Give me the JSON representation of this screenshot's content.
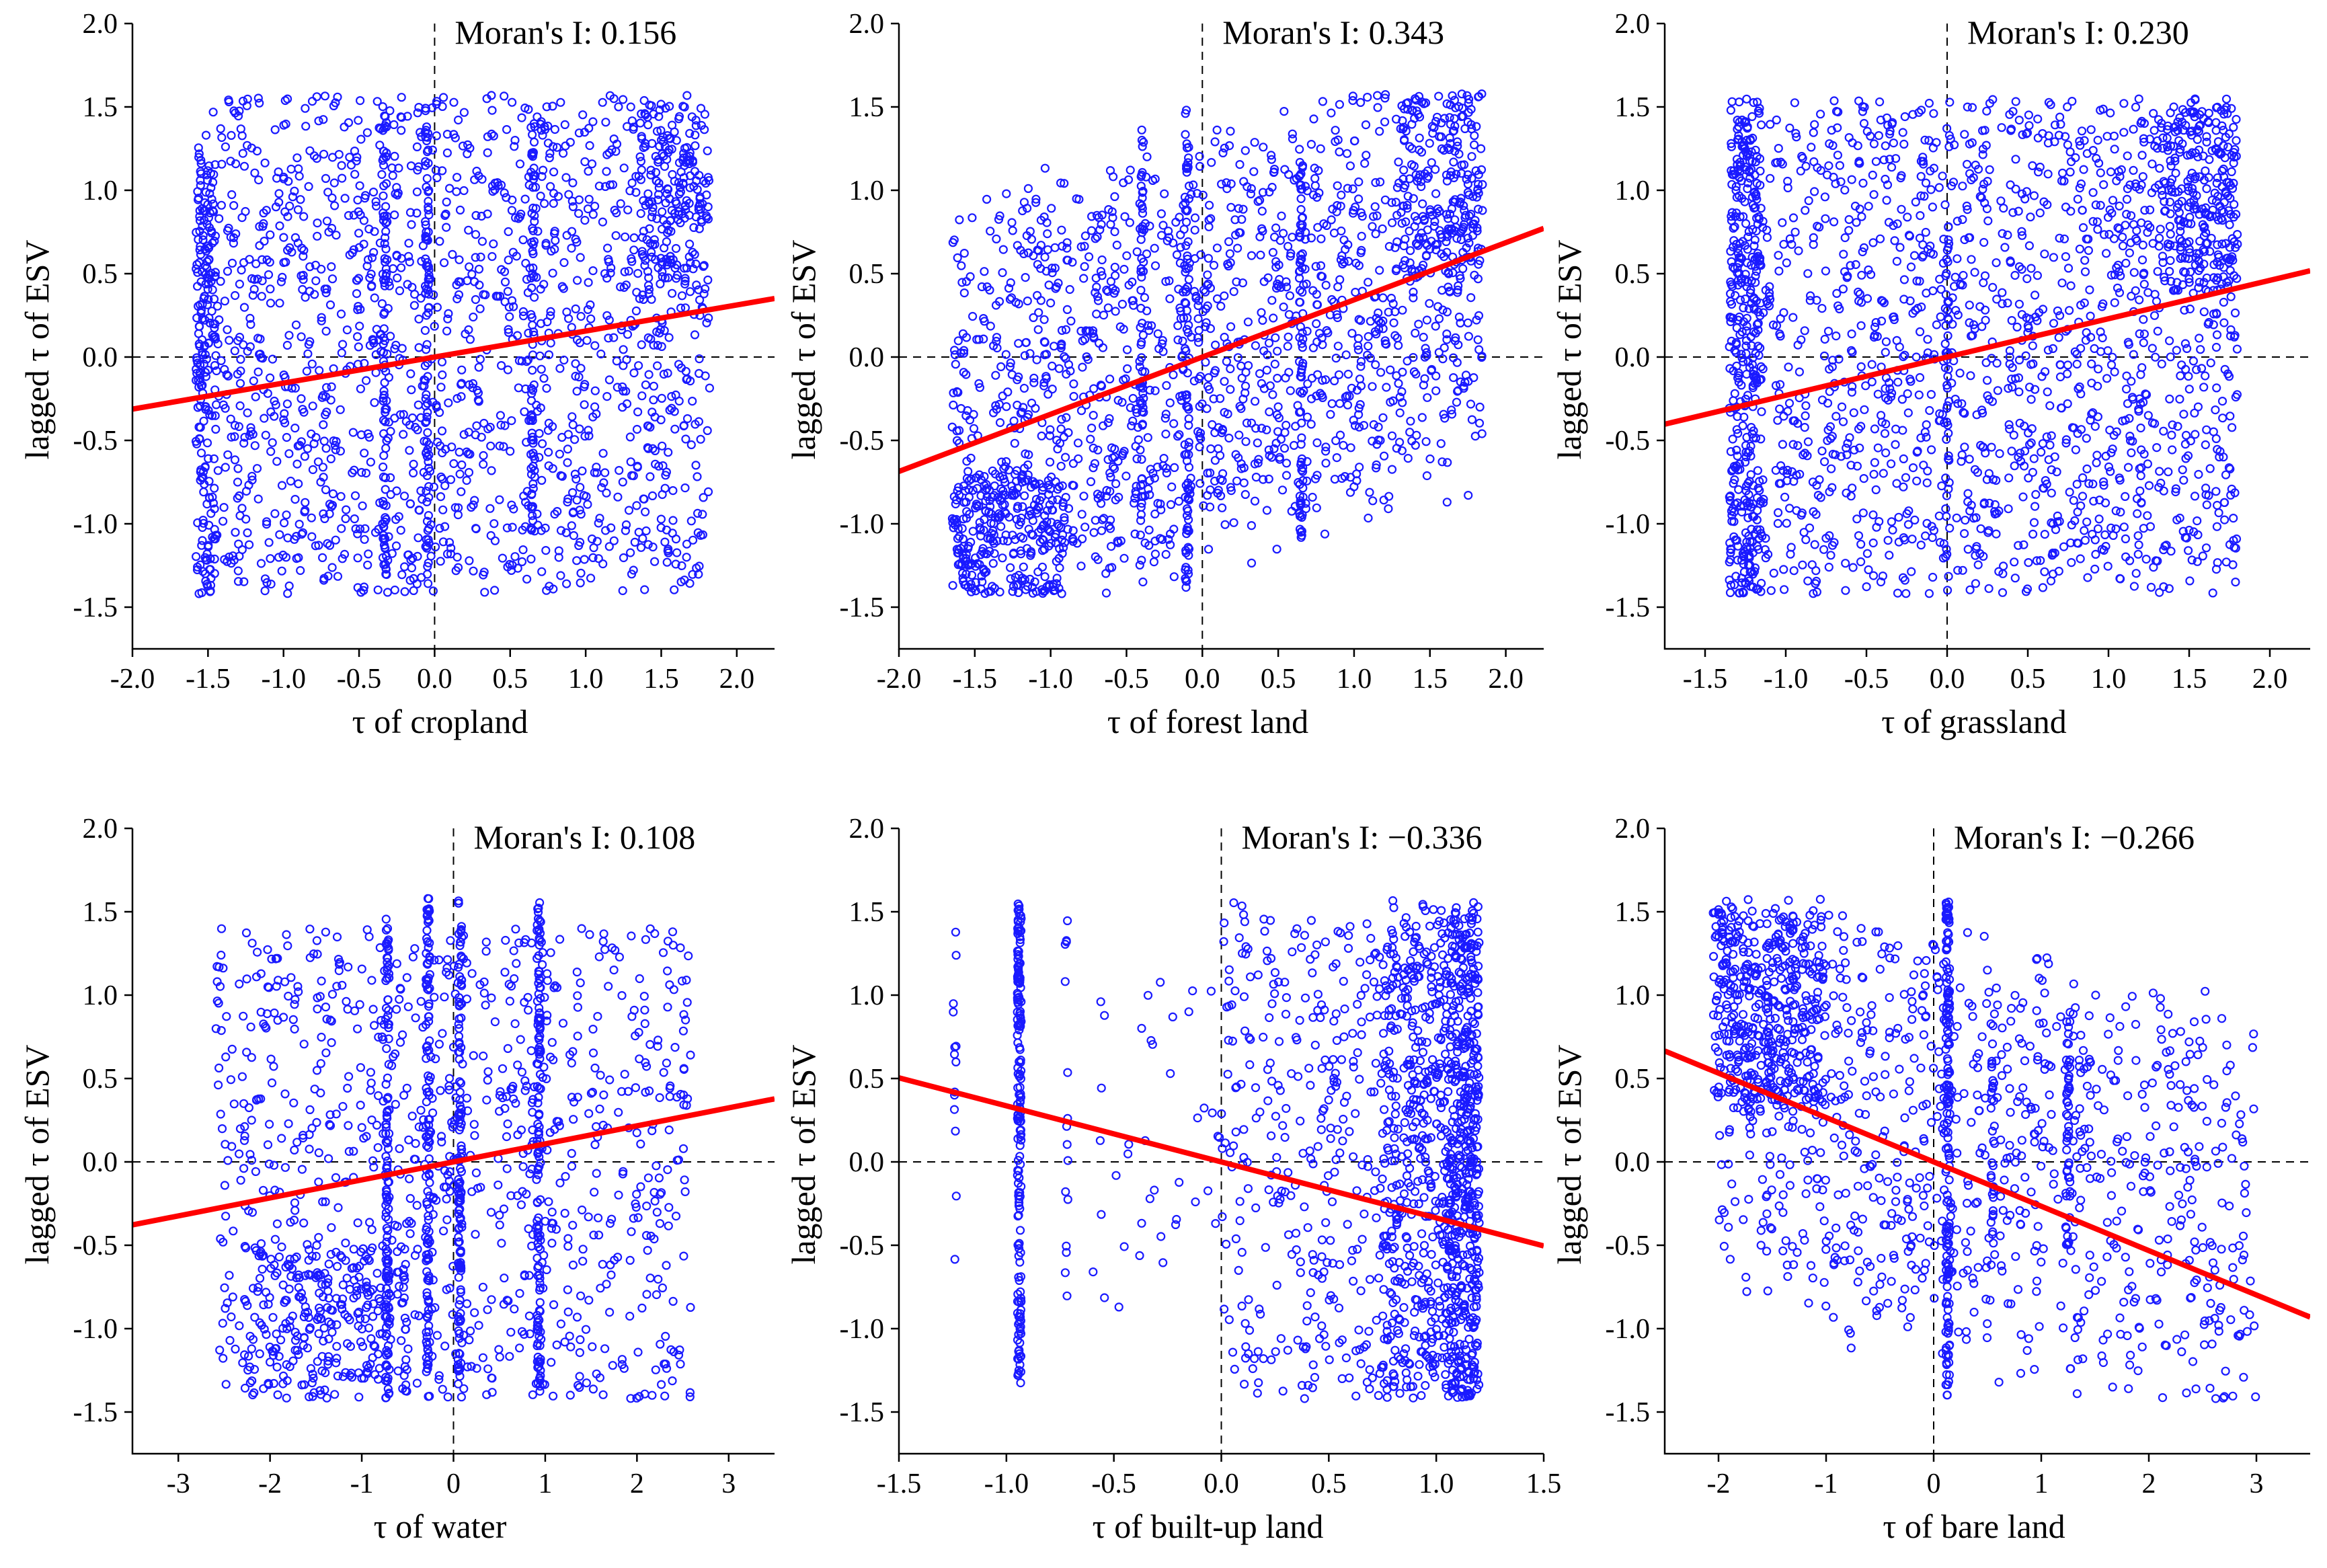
{
  "chart_data": [
    {
      "type": "scatter",
      "id": "cropland",
      "title": "Moran's I: 0.156",
      "moran_i": 0.156,
      "xlabel": "τ of cropland",
      "ylabel": "lagged τ  of ESV",
      "xlim": [
        -2.0,
        2.25
      ],
      "ylim": [
        -1.75,
        2.0
      ],
      "xticks": [
        -2.0,
        -1.5,
        -1.0,
        -0.5,
        0.0,
        0.5,
        1.0,
        1.5,
        2.0
      ],
      "xtick_labels": [
        "-2.0",
        "-1.5",
        "-1.0",
        "-0.5",
        "0.0",
        "0.5",
        "1.0",
        "1.5",
        "2.0"
      ],
      "yticks": [
        -1.5,
        -1.0,
        -0.5,
        0.0,
        0.5,
        1.0,
        1.5,
        2.0
      ],
      "ytick_labels": [
        "-1.5",
        "-1.0",
        "-0.5",
        "0.0",
        "0.5",
        "1.0",
        "1.5",
        "2.0"
      ],
      "fit_line": {
        "x": [
          -2.0,
          2.25
        ],
        "slope": 0.156
      },
      "clusters": [
        {
          "x": [
            -1.58,
            1.82
          ],
          "y": [
            -1.42,
            1.57
          ],
          "n": 1500,
          "trend": "flat"
        },
        {
          "x": [
            -1.58,
            -1.45
          ],
          "y": [
            -1.42,
            1.2
          ],
          "n": 180,
          "trend": "flat"
        },
        {
          "x": [
            1.35,
            1.82
          ],
          "y": [
            0.4,
            1.5
          ],
          "n": 150,
          "trend": "flat"
        }
      ],
      "columns": [
        {
          "x": -0.33,
          "y": [
            -1.35,
            1.5
          ],
          "n": 80
        },
        {
          "x": -0.05,
          "y": [
            -1.35,
            1.5
          ],
          "n": 80
        },
        {
          "x": 0.65,
          "y": [
            -1.3,
            1.4
          ],
          "n": 70
        }
      ]
    },
    {
      "type": "scatter",
      "id": "forest",
      "title": "Moran's I: 0.343",
      "moran_i": 0.343,
      "xlabel": "τ of forest land",
      "ylabel": "lagged τ  of ESV",
      "xlim": [
        -2.0,
        2.25
      ],
      "ylim": [
        -1.75,
        2.0
      ],
      "xticks": [
        -2.0,
        -1.5,
        -1.0,
        -0.5,
        0.0,
        0.5,
        1.0,
        1.5,
        2.0
      ],
      "xtick_labels": [
        "-2.0",
        "-1.5",
        "-1.0",
        "-0.5",
        "0.0",
        "0.5",
        "1.0",
        "1.5",
        "2.0"
      ],
      "yticks": [
        -1.5,
        -1.0,
        -0.5,
        0.0,
        0.5,
        1.0,
        1.5,
        2.0
      ],
      "ytick_labels": [
        "-1.5",
        "-1.0",
        "-0.5",
        "0.0",
        "0.5",
        "1.0",
        "1.5",
        "2.0"
      ],
      "fit_line": {
        "x": [
          -2.0,
          2.25
        ],
        "slope": 0.343
      },
      "clusters": [
        {
          "x": [
            -1.65,
            1.85
          ],
          "y": [
            -1.42,
            1.57
          ],
          "n": 1400,
          "trend": "positive"
        },
        {
          "x": [
            -1.65,
            -0.9
          ],
          "y": [
            -1.42,
            -0.7
          ],
          "n": 220,
          "trend": "flat"
        },
        {
          "x": [
            1.3,
            1.85
          ],
          "y": [
            0.5,
            1.55
          ],
          "n": 160,
          "trend": "flat"
        }
      ],
      "columns": [
        {
          "x": -0.4,
          "y": [
            -1.3,
            1.45
          ],
          "n": 60
        },
        {
          "x": -0.1,
          "y": [
            -1.4,
            1.55
          ],
          "n": 80
        },
        {
          "x": 0.65,
          "y": [
            -1.1,
            1.3
          ],
          "n": 60
        }
      ]
    },
    {
      "type": "scatter",
      "id": "grassland",
      "title": "Moran's I: 0.230",
      "moran_i": 0.23,
      "xlabel": "τ of grassland",
      "ylabel": "lagged τ  of ESV",
      "xlim": [
        -1.75,
        2.25
      ],
      "ylim": [
        -1.75,
        2.0
      ],
      "xticks": [
        -1.5,
        -1.0,
        -0.5,
        0.0,
        0.5,
        1.0,
        1.5,
        2.0
      ],
      "xtick_labels": [
        "-1.5",
        "-1.0",
        "-0.5",
        "0.0",
        "0.5",
        "1.0",
        "1.5",
        "2.0"
      ],
      "yticks": [
        -1.5,
        -1.0,
        -0.5,
        0.0,
        0.5,
        1.0,
        1.5,
        2.0
      ],
      "ytick_labels": [
        "-1.5",
        "-1.0",
        "-0.5",
        "0.0",
        "0.5",
        "1.0",
        "1.5",
        "2.0"
      ],
      "fit_line": {
        "x": [
          -1.75,
          2.25
        ],
        "slope": 0.23
      },
      "clusters": [
        {
          "x": [
            -1.35,
            1.8
          ],
          "y": [
            -1.42,
            1.55
          ],
          "n": 1500,
          "trend": "flat"
        },
        {
          "x": [
            -1.35,
            -1.15
          ],
          "y": [
            -1.42,
            1.55
          ],
          "n": 300,
          "trend": "flat"
        },
        {
          "x": [
            1.3,
            1.8
          ],
          "y": [
            0.4,
            1.5
          ],
          "n": 200,
          "trend": "flat"
        }
      ],
      "columns": [
        {
          "x": 0.0,
          "y": [
            -1.2,
            0.8
          ],
          "n": 40
        }
      ]
    },
    {
      "type": "scatter",
      "id": "water",
      "title": "Moran's I: 0.108",
      "moran_i": 0.108,
      "xlabel": "τ of water",
      "ylabel": "lagged τ  of ESV",
      "xlim": [
        -3.5,
        3.5
      ],
      "ylim": [
        -1.75,
        2.0
      ],
      "xticks": [
        -3,
        -2,
        -1,
        0,
        1,
        2,
        3
      ],
      "xtick_labels": [
        "-3",
        "-2",
        "-1",
        "0",
        "1",
        "2",
        "3"
      ],
      "yticks": [
        -1.5,
        -1.0,
        -0.5,
        0.0,
        0.5,
        1.0,
        1.5,
        2.0
      ],
      "ytick_labels": [
        "-1.5",
        "-1.0",
        "-0.5",
        "0.0",
        "0.5",
        "1.0",
        "1.5",
        "2.0"
      ],
      "fit_line": {
        "x": [
          -3.5,
          3.5
        ],
        "slope": 0.108
      },
      "clusters": [
        {
          "x": [
            -2.6,
            2.6
          ],
          "y": [
            -1.42,
            1.4
          ],
          "n": 900,
          "trend": "flat"
        },
        {
          "x": [
            -2.3,
            -0.5
          ],
          "y": [
            -1.42,
            -0.5
          ],
          "n": 200,
          "trend": "flat"
        }
      ],
      "columns": [
        {
          "x": -0.72,
          "y": [
            -1.42,
            1.55
          ],
          "n": 120
        },
        {
          "x": -0.28,
          "y": [
            -1.42,
            1.58
          ],
          "n": 120
        },
        {
          "x": 0.07,
          "y": [
            -1.42,
            1.58
          ],
          "n": 130
        },
        {
          "x": 0.93,
          "y": [
            -1.42,
            1.58
          ],
          "n": 130
        }
      ]
    },
    {
      "type": "scatter",
      "id": "builtup",
      "title": "Moran's I: −0.336",
      "moran_i": -0.336,
      "xlabel": "τ of built-up land",
      "ylabel": "lagged τ  of ESV",
      "xlim": [
        -1.5,
        1.5
      ],
      "ylim": [
        -1.75,
        2.0
      ],
      "xticks": [
        -1.5,
        -1.0,
        -0.5,
        0.0,
        0.5,
        1.0,
        1.5
      ],
      "xtick_labels": [
        "-1.5",
        "-1.0",
        "-0.5",
        "0.0",
        "0.5",
        "1.0",
        "1.5"
      ],
      "yticks": [
        -1.5,
        -1.0,
        -0.5,
        0.0,
        0.5,
        1.0,
        1.5,
        2.0
      ],
      "ytick_labels": [
        "-1.5",
        "-1.0",
        "-0.5",
        "0.0",
        "0.5",
        "1.0",
        "1.5",
        "2.0"
      ],
      "fit_line": {
        "x": [
          -1.5,
          1.5
        ],
        "slope": -0.336
      },
      "clusters": [
        {
          "x": [
            0.0,
            1.2
          ],
          "y": [
            -1.42,
            1.57
          ],
          "n": 500,
          "trend": "flat"
        },
        {
          "x": [
            0.75,
            1.2
          ],
          "y": [
            -1.42,
            1.55
          ],
          "n": 500,
          "trend": "flat"
        },
        {
          "x": [
            1.05,
            1.2
          ],
          "y": [
            -1.42,
            1.5
          ],
          "n": 300,
          "trend": "flat"
        },
        {
          "x": [
            -0.6,
            0.0
          ],
          "y": [
            -0.9,
            1.1
          ],
          "n": 40,
          "trend": "flat"
        }
      ],
      "columns": [
        {
          "x": -0.94,
          "y": [
            -1.35,
            1.55
          ],
          "n": 180
        },
        {
          "x": -1.24,
          "y": [
            -0.65,
            1.45
          ],
          "n": 14
        },
        {
          "x": -0.72,
          "y": [
            -0.85,
            1.47
          ],
          "n": 16
        }
      ]
    },
    {
      "type": "scatter",
      "id": "bareland",
      "title": "Moran's I: −0.266",
      "moran_i": -0.266,
      "xlabel": "τ of bare land",
      "ylabel": "lagged τ  of ESV",
      "xlim": [
        -2.5,
        3.5
      ],
      "ylim": [
        -1.75,
        2.0
      ],
      "xticks": [
        -2,
        -1,
        0,
        1,
        2,
        3
      ],
      "xtick_labels": [
        "-2",
        "-1",
        "0",
        "1",
        "2",
        "3"
      ],
      "yticks": [
        -1.5,
        -1.0,
        -0.5,
        0.0,
        0.5,
        1.0,
        1.5,
        2.0
      ],
      "ytick_labels": [
        "-1.5",
        "-1.0",
        "-0.5",
        "0.0",
        "0.5",
        "1.0",
        "1.5",
        "2.0"
      ],
      "fit_line": {
        "x": [
          -2.5,
          3.5
        ],
        "slope": -0.266
      },
      "clusters": [
        {
          "x": [
            -2.0,
            3.0
          ],
          "y": [
            -1.42,
            1.5
          ],
          "n": 900,
          "trend": "negative"
        },
        {
          "x": [
            -2.05,
            -1.0
          ],
          "y": [
            0.3,
            1.52
          ],
          "n": 400,
          "trend": "flat"
        }
      ],
      "columns": [
        {
          "x": 0.13,
          "y": [
            -1.42,
            1.58
          ],
          "n": 160
        },
        {
          "x": 0.55,
          "y": [
            -0.5,
            1.0
          ],
          "n": 30
        },
        {
          "x": 1.25,
          "y": [
            -0.5,
            0.9
          ],
          "n": 45
        }
      ]
    }
  ]
}
